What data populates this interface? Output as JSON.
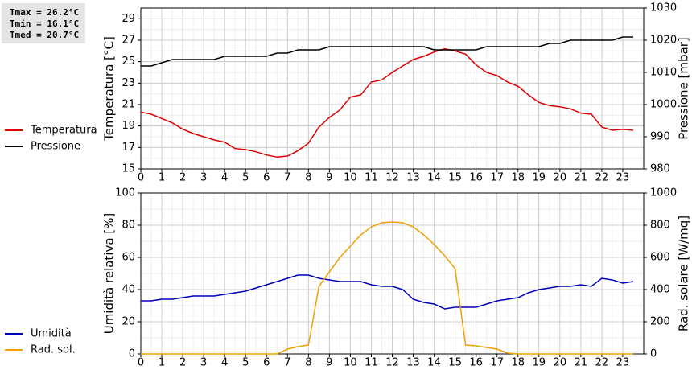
{
  "chart_data": [
    {
      "type": "line",
      "annotations": [
        "Tmax = 26.2°C",
        "Tmin = 16.1°C",
        "Tmed = 20.7°C"
      ],
      "ylabel": "Temperatura [°C]",
      "y2label": "Pressione [mbar]",
      "x": [
        0,
        0.5,
        1,
        1.5,
        2,
        2.5,
        3,
        3.5,
        4,
        4.5,
        5,
        5.5,
        6,
        6.5,
        7,
        7.5,
        8,
        8.5,
        9,
        9.5,
        10,
        10.5,
        11,
        11.5,
        12,
        12.5,
        13,
        13.5,
        14,
        14.5,
        15,
        15.5,
        16,
        16.5,
        17,
        17.5,
        18,
        18.5,
        19,
        19.5,
        20,
        20.5,
        21,
        21.5,
        22,
        22.5,
        23,
        23.5
      ],
      "xlim": [
        0,
        24
      ],
      "xticks": [
        0,
        1,
        2,
        3,
        4,
        5,
        6,
        7,
        8,
        9,
        10,
        11,
        12,
        13,
        14,
        15,
        16,
        17,
        18,
        19,
        20,
        21,
        22,
        23
      ],
      "ylim": [
        15,
        30
      ],
      "yticks": [
        15,
        17,
        19,
        21,
        23,
        25,
        27,
        29
      ],
      "y2lim": [
        980,
        1030
      ],
      "y2ticks": [
        980,
        990,
        1000,
        1010,
        1020,
        1030
      ],
      "grid": true,
      "series": [
        {
          "name": "Temperatura",
          "color": "#dd0000",
          "values": [
            20.3,
            20.1,
            19.7,
            19.3,
            18.7,
            18.3,
            18.0,
            17.7,
            17.5,
            16.9,
            16.8,
            16.6,
            16.3,
            16.1,
            16.2,
            16.7,
            17.4,
            18.9,
            19.8,
            20.5,
            21.7,
            21.9,
            23.1,
            23.3,
            24.0,
            24.6,
            25.2,
            25.5,
            25.9,
            26.2,
            26.0,
            25.7,
            24.7,
            24.0,
            23.7,
            23.1,
            22.7,
            21.9,
            21.2,
            20.9,
            20.8,
            20.6,
            20.2,
            20.1,
            18.9,
            18.6,
            18.7,
            18.6
          ]
        },
        {
          "name": "Pressione",
          "color": "#000000",
          "axis": "y2",
          "values": [
            1012,
            1012,
            1013,
            1014,
            1014,
            1014,
            1014,
            1014,
            1015,
            1015,
            1015,
            1015,
            1015,
            1016,
            1016,
            1017,
            1017,
            1017,
            1018,
            1018,
            1018,
            1018,
            1018,
            1018,
            1018,
            1018,
            1018,
            1018,
            1017,
            1017,
            1017,
            1017,
            1017,
            1018,
            1018,
            1018,
            1018,
            1018,
            1018,
            1019,
            1019,
            1020,
            1020,
            1020,
            1020,
            1020,
            1021,
            1021
          ]
        }
      ]
    },
    {
      "type": "line",
      "ylabel": "Umidità relativa [%]",
      "y2label": "Rad. solare [W/mq]",
      "x": [
        0,
        0.5,
        1,
        1.5,
        2,
        2.5,
        3,
        3.5,
        4,
        4.5,
        5,
        5.5,
        6,
        6.5,
        7,
        7.5,
        8,
        8.5,
        9,
        9.5,
        10,
        10.5,
        11,
        11.5,
        12,
        12.5,
        13,
        13.5,
        14,
        14.5,
        15,
        15.5,
        16,
        16.5,
        17,
        17.5,
        18,
        18.5,
        19,
        19.5,
        20,
        20.5,
        21,
        21.5,
        22,
        22.5,
        23,
        23.5
      ],
      "xlim": [
        0,
        24
      ],
      "xticks": [
        0,
        1,
        2,
        3,
        4,
        5,
        6,
        7,
        8,
        9,
        10,
        11,
        12,
        13,
        14,
        15,
        16,
        17,
        18,
        19,
        20,
        21,
        22,
        23
      ],
      "ylim": [
        0,
        100
      ],
      "yticks": [
        0,
        20,
        40,
        60,
        80,
        100
      ],
      "y2lim": [
        0,
        1000
      ],
      "y2ticks": [
        0,
        200,
        400,
        600,
        800,
        1000
      ],
      "grid": true,
      "series": [
        {
          "name": "Umidità",
          "color": "#0000bb",
          "values": [
            33,
            33,
            34,
            34,
            35,
            36,
            36,
            36,
            37,
            38,
            39,
            41,
            43,
            45,
            47,
            49,
            49,
            47,
            46,
            45,
            45,
            45,
            43,
            42,
            42,
            40,
            34,
            32,
            31,
            28,
            29,
            29,
            29,
            31,
            33,
            34,
            35,
            38,
            40,
            41,
            42,
            42,
            43,
            42,
            47,
            46,
            44,
            45
          ]
        },
        {
          "name": "Rad. sol.",
          "color": "#f0a000",
          "axis": "y2",
          "values": [
            0,
            0,
            0,
            0,
            0,
            0,
            0,
            0,
            0,
            0,
            0,
            0,
            0,
            0,
            30,
            45,
            55,
            420,
            510,
            600,
            670,
            740,
            790,
            815,
            820,
            815,
            790,
            740,
            680,
            610,
            530,
            55,
            50,
            40,
            30,
            5,
            0,
            0,
            0,
            0,
            0,
            0,
            0,
            0,
            0,
            0,
            0,
            0
          ]
        }
      ]
    }
  ]
}
